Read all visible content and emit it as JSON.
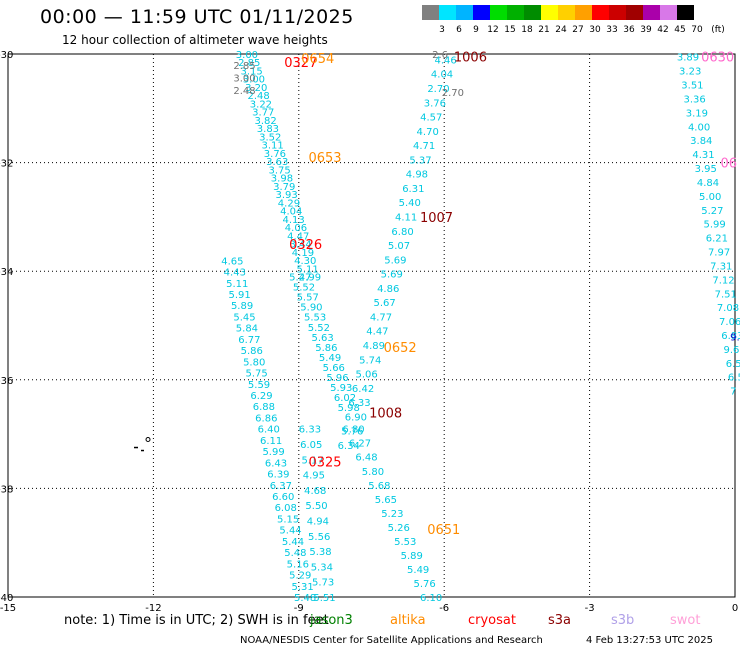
{
  "title": "00:00  —  11:59 UTC 01/11/2025",
  "subtitle": "12 hour collection of altimeter wave heights",
  "colorbar": {
    "unit": "(ft)",
    "bins": [
      {
        "label": "3",
        "color": "#808080"
      },
      {
        "label": "6",
        "color": "#00e5ff"
      },
      {
        "label": "9",
        "color": "#00b4ff"
      },
      {
        "label": "12",
        "color": "#0000ff"
      },
      {
        "label": "15",
        "color": "#00dd00"
      },
      {
        "label": "18",
        "color": "#00b000"
      },
      {
        "label": "21",
        "color": "#008c00"
      },
      {
        "label": "24",
        "color": "#ffff00"
      },
      {
        "label": "27",
        "color": "#ffd000"
      },
      {
        "label": "30",
        "color": "#ffa000"
      },
      {
        "label": "33",
        "color": "#ff0000"
      },
      {
        "label": "36",
        "color": "#cc0000"
      },
      {
        "label": "39",
        "color": "#a00000"
      },
      {
        "label": "42",
        "color": "#aa00aa"
      },
      {
        "label": "45",
        "color": "#d878e8"
      },
      {
        "label": "70",
        "color": "#000000"
      }
    ]
  },
  "map": {
    "lon_range": [
      -15,
      0
    ],
    "lat_range": [
      -40,
      -30
    ],
    "x_ticks": [
      "-15",
      "-12",
      "-9",
      "-6",
      "-3",
      "0"
    ],
    "y_ticks": [
      "-30",
      "-32",
      "-34",
      "-36",
      "-38",
      "-40"
    ],
    "colors": {
      "cyan": "#00c8e0",
      "gray": "#707070",
      "orange": "#ff8c00",
      "red": "#ff0000",
      "darkred": "#8b0000",
      "pink": "#ff66cc",
      "blue": "#0000c8"
    },
    "time_labels": [
      {
        "text": "0327",
        "lon": -9.3,
        "lat": -30.15,
        "color": "red"
      },
      {
        "text": "0654",
        "lon": -8.95,
        "lat": -30.07,
        "color": "orange"
      },
      {
        "text": "0653",
        "lon": -8.8,
        "lat": -31.9,
        "color": "orange"
      },
      {
        "text": "0326",
        "lon": -9.2,
        "lat": -33.5,
        "color": "red"
      },
      {
        "text": "0652",
        "lon": -7.25,
        "lat": -35.4,
        "color": "orange"
      },
      {
        "text": "0325",
        "lon": -8.8,
        "lat": -37.5,
        "color": "red"
      },
      {
        "text": "0651",
        "lon": -6.35,
        "lat": -38.75,
        "color": "orange"
      },
      {
        "text": "1006",
        "lon": -5.8,
        "lat": -30.05,
        "color": "darkred"
      },
      {
        "text": "1007",
        "lon": -6.5,
        "lat": -33.0,
        "color": "darkred"
      },
      {
        "text": "1008",
        "lon": -7.55,
        "lat": -36.6,
        "color": "darkred"
      },
      {
        "text": "0630",
        "lon": -0.7,
        "lat": -30.05,
        "color": "pink"
      },
      {
        "text": "06",
        "lon": -0.3,
        "lat": -32.0,
        "color": "pink"
      }
    ],
    "tracks": [
      {
        "name": "track-a",
        "color": "cyan",
        "start_lon": -10.3,
        "start_lat": -30.0,
        "end_lon": -9.0,
        "end_lat": -34.1,
        "values": [
          "3.00",
          "2.85",
          "3.15",
          "3.00",
          "3.20",
          "2.48",
          "3.22",
          "3.77",
          "3.82",
          "3.83",
          "3.52",
          "3.11",
          "3.76",
          "3.63",
          "3.75",
          "3.98",
          "3.79",
          "3.93",
          "4.29",
          "4.04",
          "4.13",
          "4.06",
          "4.47",
          "3.44",
          "4.19",
          "4.30",
          "5.11",
          "4.99"
        ]
      },
      {
        "name": "track-b",
        "color": "cyan",
        "start_lon": -9.2,
        "start_lat": -34.1,
        "end_lon": -8.2,
        "end_lat": -36.5,
        "values": [
          "5.27",
          "5.52",
          "5.57",
          "5.90",
          "5.53",
          "5.52",
          "5.63",
          "5.86",
          "5.49",
          "5.66",
          "5.96",
          "5.93",
          "6.02",
          "5.98"
        ]
      },
      {
        "name": "track-c",
        "color": "cyan",
        "start_lon": -10.6,
        "start_lat": -33.8,
        "end_lon": -9.1,
        "end_lat": -40.0,
        "values": [
          "4.65",
          "4.43",
          "5.11",
          "5.91",
          "5.89",
          "5.45",
          "5.84",
          "6.77",
          "5.86",
          "5.80",
          "5.75",
          "5.59",
          "6.29",
          "6.88",
          "6.86",
          "6.40",
          "6.11",
          "5.99",
          "6.43",
          "6.39",
          "6.37",
          "6.60",
          "6.08",
          "5.15",
          "5.44",
          "5.44",
          "5.48",
          "5.16",
          "5.29",
          "5.31",
          "5.48"
        ]
      },
      {
        "name": "track-d",
        "color": "cyan",
        "start_lon": -9.0,
        "start_lat": -36.9,
        "end_lon": -8.7,
        "end_lat": -40.0,
        "values": [
          "6.33",
          "6.05",
          "5.17",
          "4.95",
          "4.68",
          "5.50",
          "4.94",
          "5.56",
          "5.38",
          "5.34",
          "5.73",
          "5.51"
        ]
      },
      {
        "name": "track-e",
        "color": "cyan",
        "start_lon": -6.2,
        "start_lat": -30.1,
        "end_lon": -8.2,
        "end_lat": -37.2,
        "values": [
          "4.46",
          "4.04",
          "2.70",
          "3.76",
          "4.57",
          "4.70",
          "4.71",
          "5.37",
          "4.98",
          "6.31",
          "5.40",
          "4.11",
          "6.80",
          "5.07",
          "5.69",
          "5.69",
          "4.86",
          "5.67",
          "4.77",
          "4.47",
          "4.89",
          "5.74",
          "5.06",
          "6.42",
          "6.33",
          "6.90",
          "5.76",
          "6.34"
        ]
      },
      {
        "name": "track-f",
        "color": "cyan",
        "start_lon": -8.1,
        "start_lat": -36.9,
        "end_lon": -6.5,
        "end_lat": -40.0,
        "values": [
          "6.80",
          "6.27",
          "6.48",
          "5.80",
          "5.68",
          "5.65",
          "5.23",
          "5.26",
          "5.53",
          "5.89",
          "5.49",
          "5.76",
          "6.10"
        ]
      },
      {
        "name": "track-g",
        "color": "cyan",
        "start_lon": -1.2,
        "start_lat": -30.05,
        "end_lon": -0.1,
        "end_lat": -36.2,
        "values": [
          "3.89",
          "3.23",
          "3.51",
          "3.36",
          "3.19",
          "4.00",
          "3.84",
          "4.31",
          "3.95",
          "4.84",
          "5.00",
          "5.27",
          "5.99",
          "6.21",
          "7.97",
          "7.31",
          "7.12",
          "7.51",
          "7.08",
          "7.06",
          "6.83",
          "9.6",
          "6.5",
          "6.5",
          "7"
        ]
      }
    ],
    "gray_values": [
      {
        "text": "2.85",
        "lon": -10.35,
        "lat": -30.2
      },
      {
        "text": "3.00",
        "lon": -10.35,
        "lat": -30.43
      },
      {
        "text": "2.48",
        "lon": -10.35,
        "lat": -30.66
      },
      {
        "text": "2.6",
        "lon": -6.25,
        "lat": -30.0
      },
      {
        "text": "2.70",
        "lon": -6.05,
        "lat": -30.7
      }
    ],
    "blue_values": [
      {
        "text": "9.6",
        "lon": -0.1,
        "lat": -35.2
      }
    ]
  },
  "footer": {
    "note": "note:  1) Time is in UTC; 2) SWH is in feet",
    "satellites": [
      {
        "name": "jason3",
        "color": "#008000"
      },
      {
        "name": "altika",
        "color": "#ff8c00"
      },
      {
        "name": "cryosat",
        "color": "#ff0000"
      },
      {
        "name": "s3a",
        "color": "#8b0000"
      },
      {
        "name": "s3b",
        "color": "#b0a0e8"
      },
      {
        "name": "swot",
        "color": "#ffa0d8"
      }
    ],
    "credit": "NOAA/NESDIS Center for Satellite Applications and Research",
    "timestamp": "4 Feb 13:27:53 UTC 2025"
  }
}
